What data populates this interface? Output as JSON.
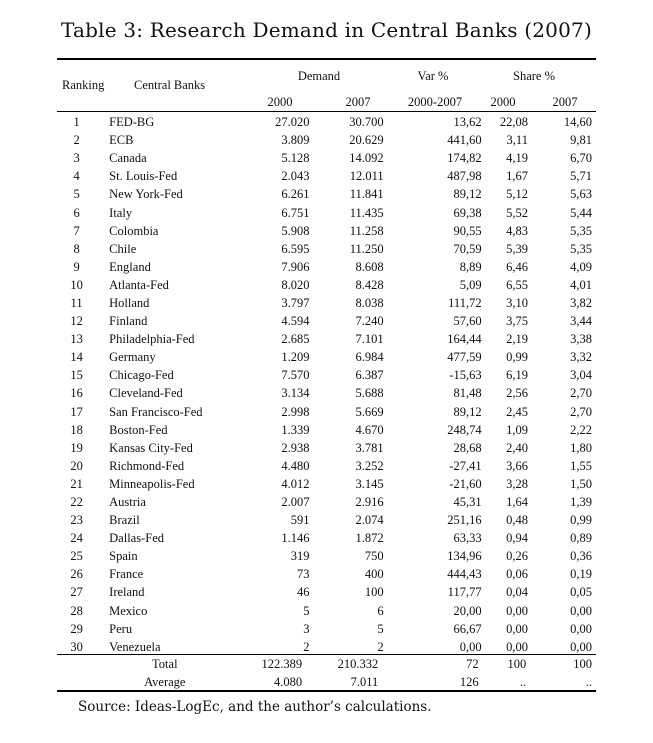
{
  "title": "Table 3: Research Demand in Central Banks (2007)",
  "headers": {
    "ranking": "Ranking",
    "banks": "Central Banks",
    "demand": "Demand",
    "var": "Var %",
    "share": "Share %",
    "d2000": "2000",
    "d2007": "2007",
    "var_period": "2000-2007",
    "s2000": "2000",
    "s2007": "2007"
  },
  "rows": [
    {
      "rank": "1",
      "bank": "FED-BG",
      "d2000": "27.020",
      "d2007": "30.700",
      "var": "13,62",
      "s2000": "22,08",
      "s2007": "14,60"
    },
    {
      "rank": "2",
      "bank": "ECB",
      "d2000": "3.809",
      "d2007": "20.629",
      "var": "441,60",
      "s2000": "3,11",
      "s2007": "9,81"
    },
    {
      "rank": "3",
      "bank": "Canada",
      "d2000": "5.128",
      "d2007": "14.092",
      "var": "174,82",
      "s2000": "4,19",
      "s2007": "6,70"
    },
    {
      "rank": "4",
      "bank": "St. Louis-Fed",
      "d2000": "2.043",
      "d2007": "12.011",
      "var": "487,98",
      "s2000": "1,67",
      "s2007": "5,71"
    },
    {
      "rank": "5",
      "bank": "New York-Fed",
      "d2000": "6.261",
      "d2007": "11.841",
      "var": "89,12",
      "s2000": "5,12",
      "s2007": "5,63"
    },
    {
      "rank": "6",
      "bank": "Italy",
      "d2000": "6.751",
      "d2007": "11.435",
      "var": "69,38",
      "s2000": "5,52",
      "s2007": "5,44"
    },
    {
      "rank": "7",
      "bank": "Colombia",
      "d2000": "5.908",
      "d2007": "11.258",
      "var": "90,55",
      "s2000": "4,83",
      "s2007": "5,35"
    },
    {
      "rank": "8",
      "bank": "Chile",
      "d2000": "6.595",
      "d2007": "11.250",
      "var": "70,59",
      "s2000": "5,39",
      "s2007": "5,35"
    },
    {
      "rank": "9",
      "bank": "England",
      "d2000": "7.906",
      "d2007": "8.608",
      "var": "8,89",
      "s2000": "6,46",
      "s2007": "4,09"
    },
    {
      "rank": "10",
      "bank": "Atlanta-Fed",
      "d2000": "8.020",
      "d2007": "8.428",
      "var": "5,09",
      "s2000": "6,55",
      "s2007": "4,01"
    },
    {
      "rank": "11",
      "bank": "Holland",
      "d2000": "3.797",
      "d2007": "8.038",
      "var": "111,72",
      "s2000": "3,10",
      "s2007": "3,82"
    },
    {
      "rank": "12",
      "bank": "Finland",
      "d2000": "4.594",
      "d2007": "7.240",
      "var": "57,60",
      "s2000": "3,75",
      "s2007": "3,44"
    },
    {
      "rank": "13",
      "bank": "Philadelphia-Fed",
      "d2000": "2.685",
      "d2007": "7.101",
      "var": "164,44",
      "s2000": "2,19",
      "s2007": "3,38"
    },
    {
      "rank": "14",
      "bank": "Germany",
      "d2000": "1.209",
      "d2007": "6.984",
      "var": "477,59",
      "s2000": "0,99",
      "s2007": "3,32"
    },
    {
      "rank": "15",
      "bank": "Chicago-Fed",
      "d2000": "7.570",
      "d2007": "6.387",
      "var": "-15,63",
      "s2000": "6,19",
      "s2007": "3,04"
    },
    {
      "rank": "16",
      "bank": "Cleveland-Fed",
      "d2000": "3.134",
      "d2007": "5.688",
      "var": "81,48",
      "s2000": "2,56",
      "s2007": "2,70"
    },
    {
      "rank": "17",
      "bank": "San Francisco-Fed",
      "d2000": "2.998",
      "d2007": "5.669",
      "var": "89,12",
      "s2000": "2,45",
      "s2007": "2,70"
    },
    {
      "rank": "18",
      "bank": "Boston-Fed",
      "d2000": "1.339",
      "d2007": "4.670",
      "var": "248,74",
      "s2000": "1,09",
      "s2007": "2,22"
    },
    {
      "rank": "19",
      "bank": "Kansas City-Fed",
      "d2000": "2.938",
      "d2007": "3.781",
      "var": "28,68",
      "s2000": "2,40",
      "s2007": "1,80"
    },
    {
      "rank": "20",
      "bank": "Richmond-Fed",
      "d2000": "4.480",
      "d2007": "3.252",
      "var": "-27,41",
      "s2000": "3,66",
      "s2007": "1,55"
    },
    {
      "rank": "21",
      "bank": "Minneapolis-Fed",
      "d2000": "4.012",
      "d2007": "3.145",
      "var": "-21,60",
      "s2000": "3,28",
      "s2007": "1,50"
    },
    {
      "rank": "22",
      "bank": "Austria",
      "d2000": "2.007",
      "d2007": "2.916",
      "var": "45,31",
      "s2000": "1,64",
      "s2007": "1,39"
    },
    {
      "rank": "23",
      "bank": "Brazil",
      "d2000": "591",
      "d2007": "2.074",
      "var": "251,16",
      "s2000": "0,48",
      "s2007": "0,99"
    },
    {
      "rank": "24",
      "bank": "Dallas-Fed",
      "d2000": "1.146",
      "d2007": "1.872",
      "var": "63,33",
      "s2000": "0,94",
      "s2007": "0,89"
    },
    {
      "rank": "25",
      "bank": "Spain",
      "d2000": "319",
      "d2007": "750",
      "var": "134,96",
      "s2000": "0,26",
      "s2007": "0,36"
    },
    {
      "rank": "26",
      "bank": "France",
      "d2000": "73",
      "d2007": "400",
      "var": "444,43",
      "s2000": "0,06",
      "s2007": "0,19"
    },
    {
      "rank": "27",
      "bank": "Ireland",
      "d2000": "46",
      "d2007": "100",
      "var": "117,77",
      "s2000": "0,04",
      "s2007": "0,05"
    },
    {
      "rank": "28",
      "bank": "Mexico",
      "d2000": "5",
      "d2007": "6",
      "var": "20,00",
      "s2000": "0,00",
      "s2007": "0,00"
    },
    {
      "rank": "29",
      "bank": "Peru",
      "d2000": "3",
      "d2007": "5",
      "var": "66,67",
      "s2000": "0,00",
      "s2007": "0,00"
    },
    {
      "rank": "30",
      "bank": "Venezuela",
      "d2000": "2",
      "d2007": "2",
      "var": "0,00",
      "s2000": "0,00",
      "s2007": "0,00"
    }
  ],
  "total": {
    "label": "Total",
    "d2000": "122.389",
    "d2007": "210.332",
    "var": "72",
    "s2000": "100",
    "s2007": "100"
  },
  "average": {
    "label": "Average",
    "d2000": "4.080",
    "d2007": "7.011",
    "var": "126",
    "s2000": "..",
    "s2007": ".."
  },
  "source": "Source: Ideas-LogEc, and the author’s calculations."
}
